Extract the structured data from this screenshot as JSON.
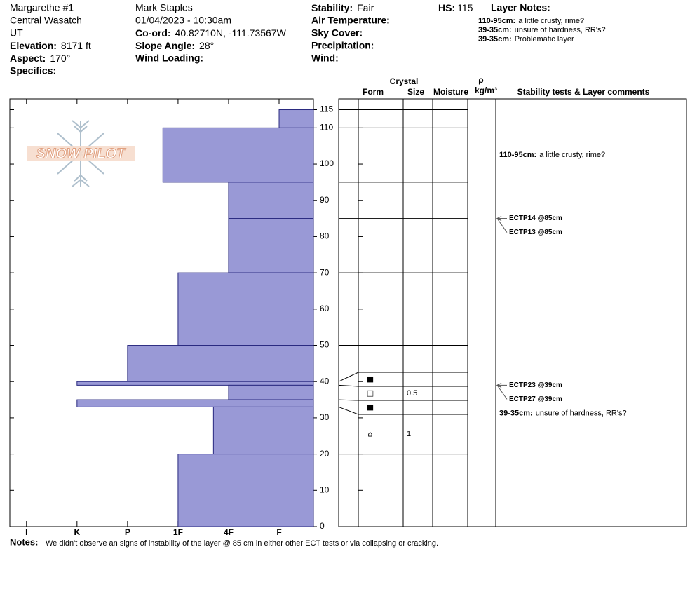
{
  "header": {
    "location": "Margarethe #1",
    "range": "Central Wasatch",
    "state": "UT",
    "elevation": {
      "label": "Elevation:",
      "value": "8171 ft"
    },
    "aspect": {
      "label": "Aspect:",
      "value": "170°"
    },
    "specifics": {
      "label": "Specifics:"
    },
    "observer": "Mark Staples",
    "datetime": "01/04/2023 - 10:30am",
    "coord": {
      "label": "Co-ord:",
      "value": "40.82710N, -111.73567W"
    },
    "slope": {
      "label": "Slope Angle:",
      "value": "28°"
    },
    "wind_loading": {
      "label": "Wind Loading:"
    },
    "stability": {
      "label": "Stability:",
      "value": "Fair"
    },
    "air_temp": {
      "label": "Air Temperature:"
    },
    "sky": {
      "label": "Sky Cover:"
    },
    "precip": {
      "label": "Precipitation:"
    },
    "wind": {
      "label": "Wind:"
    },
    "hs": {
      "label": "HS:",
      "value": "115"
    },
    "layer_notes": {
      "title": "Layer Notes:",
      "items": [
        {
          "range": "110-95cm:",
          "text": "a little crusty, rime?"
        },
        {
          "range": "39-35cm:",
          "text": "unsure of hardness, RR's?"
        },
        {
          "range": "39-35cm:",
          "text": "Problematic layer"
        }
      ]
    }
  },
  "chart_data": {
    "type": "snowprofile",
    "logo": "SNOW PILOT",
    "color": "#9999d6",
    "ylim": [
      0,
      118
    ],
    "yticks": [
      0,
      10,
      20,
      30,
      40,
      50,
      60,
      70,
      80,
      90,
      100,
      110,
      115
    ],
    "xlim": [
      0.32,
      6.33
    ],
    "xticks": [
      {
        "value": 6,
        "label": "I"
      },
      {
        "value": 5,
        "label": "K"
      },
      {
        "value": 4,
        "label": "P"
      },
      {
        "value": 3,
        "label": "1F"
      },
      {
        "value": 2,
        "label": "4F"
      },
      {
        "value": 1,
        "label": "F"
      }
    ],
    "columns": {
      "crystal": "Crystal",
      "form": "Form",
      "size": "Size",
      "moisture": "Moisture",
      "density_symbol": "ρ",
      "density_unit": "kg/m³",
      "comments": "Stability tests & Layer comments"
    },
    "layers": [
      {
        "top": 115,
        "bottom": 110,
        "hardness": 1
      },
      {
        "top": 110,
        "bottom": 95,
        "hardness": 3.3
      },
      {
        "top": 95,
        "bottom": 85,
        "hardness": 2
      },
      {
        "top": 85,
        "bottom": 70,
        "hardness": 2
      },
      {
        "top": 70,
        "bottom": 50,
        "hardness": 3
      },
      {
        "top": 50,
        "bottom": 40,
        "hardness": 4
      },
      {
        "top": 40,
        "bottom": 39,
        "hardness": 5,
        "form": "■"
      },
      {
        "top": 39,
        "bottom": 35,
        "hardness": 2,
        "form": "□",
        "size": 0.5
      },
      {
        "top": 35,
        "bottom": 33,
        "hardness": 5,
        "form": "■"
      },
      {
        "top": 33,
        "bottom": 20,
        "hardness": 2.3,
        "form": "⌂",
        "size": 1
      },
      {
        "top": 20,
        "bottom": 0,
        "hardness": 3
      }
    ],
    "tests": [
      {
        "label": "ECTP14 @85cm",
        "depth": 85
      },
      {
        "label": "ECTP13 @85cm",
        "depth": 85
      },
      {
        "label": "ECTP23 @39cm",
        "depth": 39
      },
      {
        "label": "ECTP27 @39cm",
        "depth": 39
      }
    ],
    "comments": [
      {
        "range": "110-95cm:",
        "text": "a little crusty, rime?",
        "top": 110,
        "bottom": 95
      },
      {
        "range": "39-35cm:",
        "text": "unsure of hardness, RR's?",
        "top": 39,
        "bottom": 35
      }
    ]
  },
  "notes": {
    "label": "Notes:",
    "text": "We didn't observe an signs of instability of the layer @ 85 cm in either other ECT tests or via collapsing or cracking."
  }
}
